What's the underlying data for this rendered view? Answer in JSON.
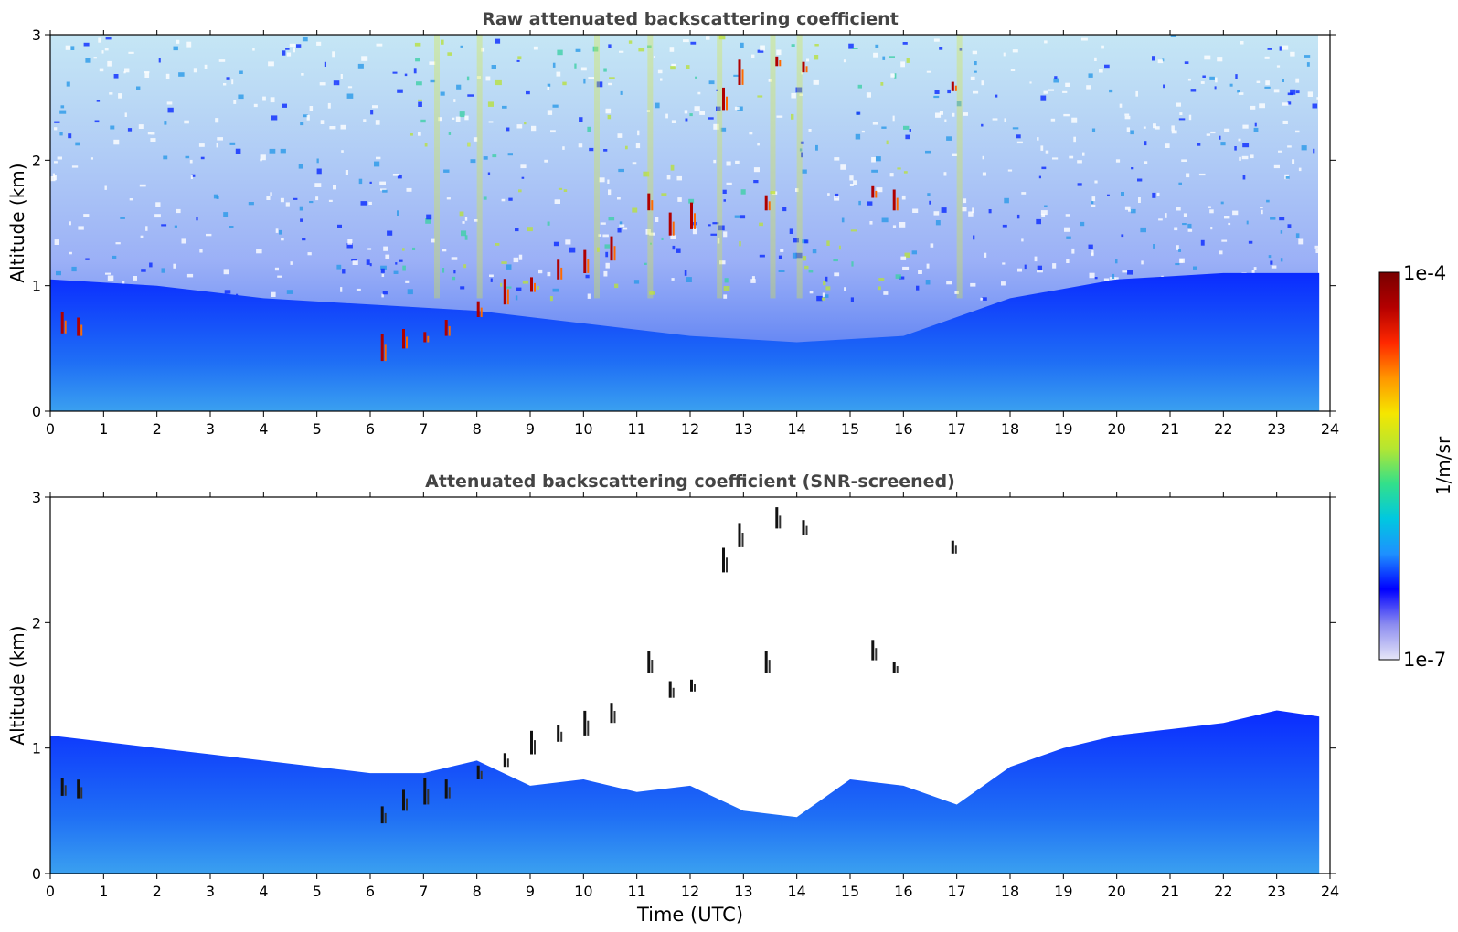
{
  "figure": {
    "colorbar": {
      "label": "1/m/sr",
      "max_label": "1e-4",
      "min_label": "1e-7",
      "scale": "log",
      "range": [
        1e-07,
        0.0001
      ],
      "colormap": [
        "#e6e6f7",
        "#8c8cf0",
        "#0000ff",
        "#1e90ff",
        "#00c8e0",
        "#33e08a",
        "#b4e632",
        "#f5e600",
        "#ff9600",
        "#ff2800",
        "#b40000",
        "#780000"
      ]
    },
    "xlabel": "Time (UTC)"
  },
  "chart_data": [
    {
      "type": "heatmap",
      "title": "Raw attenuated backscattering coefficient",
      "xlabel": "",
      "ylabel": "Altitude (km)",
      "xlim": [
        0,
        24
      ],
      "ylim": [
        0,
        3
      ],
      "xticks": [
        "0",
        "1",
        "2",
        "3",
        "4",
        "5",
        "6",
        "7",
        "8",
        "9",
        "10",
        "11",
        "12",
        "13",
        "14",
        "15",
        "16",
        "17",
        "18",
        "19",
        "20",
        "21",
        "22",
        "23",
        "24"
      ],
      "yticks": [
        "0",
        "1",
        "2",
        "3"
      ],
      "data_end_hour": 23.8,
      "features": [
        {
          "kind": "boundary_layer",
          "top_km": [
            [
              0,
              1.05
            ],
            [
              2,
              1.0
            ],
            [
              4,
              0.9
            ],
            [
              6,
              0.85
            ],
            [
              8,
              0.8
            ],
            [
              10,
              0.7
            ],
            [
              12,
              0.6
            ],
            [
              14,
              0.55
            ],
            [
              16,
              0.6
            ],
            [
              18,
              0.9
            ],
            [
              20,
              1.05
            ],
            [
              22,
              1.1
            ],
            [
              23.8,
              1.1
            ]
          ]
        },
        {
          "kind": "cloud_base_points",
          "points": [
            [
              0.2,
              0.62
            ],
            [
              0.5,
              0.6
            ],
            [
              6.2,
              0.4
            ],
            [
              6.6,
              0.5
            ],
            [
              7.0,
              0.55
            ],
            [
              7.4,
              0.6
            ],
            [
              8.0,
              0.75
            ],
            [
              8.5,
              0.85
            ],
            [
              9.0,
              0.95
            ],
            [
              9.5,
              1.05
            ],
            [
              10.0,
              1.1
            ],
            [
              10.5,
              1.2
            ],
            [
              11.2,
              1.6
            ],
            [
              11.6,
              1.4
            ],
            [
              12.0,
              1.45
            ],
            [
              12.6,
              2.4
            ],
            [
              12.9,
              2.6
            ],
            [
              13.4,
              1.6
            ],
            [
              13.6,
              2.75
            ],
            [
              14.1,
              2.7
            ],
            [
              15.4,
              1.7
            ],
            [
              15.8,
              1.6
            ],
            [
              16.9,
              2.55
            ]
          ]
        }
      ]
    },
    {
      "type": "heatmap",
      "title": "Attenuated backscattering coefficient (SNR-screened)",
      "xlabel": "Time (UTC)",
      "ylabel": "Altitude (km)",
      "xlim": [
        0,
        24
      ],
      "ylim": [
        0,
        3
      ],
      "xticks": [
        "0",
        "1",
        "2",
        "3",
        "4",
        "5",
        "6",
        "7",
        "8",
        "9",
        "10",
        "11",
        "12",
        "13",
        "14",
        "15",
        "16",
        "17",
        "18",
        "19",
        "20",
        "21",
        "22",
        "23",
        "24"
      ],
      "yticks": [
        "0",
        "1",
        "2",
        "3"
      ],
      "data_end_hour": 23.8,
      "features": [
        {
          "kind": "screened_top",
          "top_km": [
            [
              0,
              1.1
            ],
            [
              2,
              1.0
            ],
            [
              3,
              0.95
            ],
            [
              5,
              0.85
            ],
            [
              6,
              0.8
            ],
            [
              7,
              0.8
            ],
            [
              8,
              0.9
            ],
            [
              9,
              0.7
            ],
            [
              10,
              0.75
            ],
            [
              11,
              0.65
            ],
            [
              12,
              0.7
            ],
            [
              13,
              0.5
            ],
            [
              14,
              0.45
            ],
            [
              15,
              0.75
            ],
            [
              16,
              0.7
            ],
            [
              17,
              0.55
            ],
            [
              18,
              0.85
            ],
            [
              19,
              1.0
            ],
            [
              20,
              1.1
            ],
            [
              21,
              1.15
            ],
            [
              22,
              1.2
            ],
            [
              23,
              1.3
            ],
            [
              23.8,
              1.25
            ]
          ]
        }
      ]
    }
  ]
}
